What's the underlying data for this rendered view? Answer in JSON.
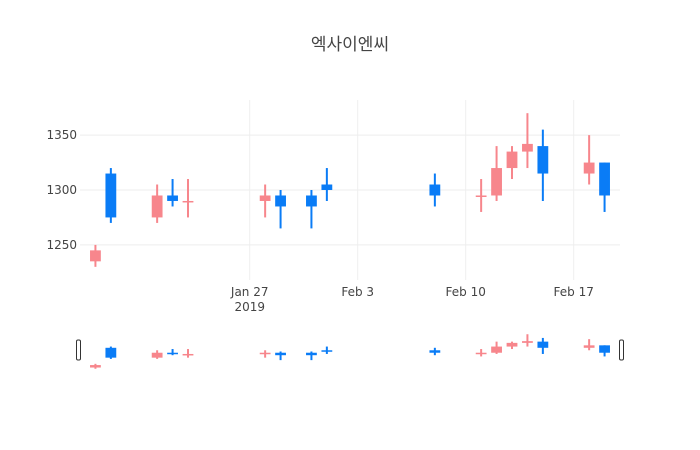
{
  "chart_data": {
    "type": "candlestick",
    "title": "엑사이엔씨",
    "xlabel": "",
    "ylabel": "",
    "up_color": "#f7868c",
    "down_color": "#0a7cf6",
    "y_ticks": [
      1250,
      1300,
      1350
    ],
    "ylim": [
      1218,
      1382
    ],
    "x_range": [
      "2019-01-16",
      "2019-02-20"
    ],
    "x_ticks": [
      {
        "date": "2019-01-27",
        "label": "Jan 27",
        "sublabel": "2019"
      },
      {
        "date": "2019-02-03",
        "label": "Feb 3",
        "sublabel": ""
      },
      {
        "date": "2019-02-10",
        "label": "Feb 10",
        "sublabel": ""
      },
      {
        "date": "2019-02-17",
        "label": "Feb 17",
        "sublabel": ""
      }
    ],
    "grid": true,
    "rangeslider": true,
    "candles": [
      {
        "date": "2019-01-17",
        "open": 1235,
        "high": 1250,
        "low": 1230,
        "close": 1245
      },
      {
        "date": "2019-01-18",
        "open": 1315,
        "high": 1320,
        "low": 1270,
        "close": 1275
      },
      {
        "date": "2019-01-21",
        "open": 1275,
        "high": 1305,
        "low": 1270,
        "close": 1295
      },
      {
        "date": "2019-01-22",
        "open": 1295,
        "high": 1310,
        "low": 1285,
        "close": 1290
      },
      {
        "date": "2019-01-23",
        "open": 1290,
        "high": 1310,
        "low": 1275,
        "close": 1290
      },
      {
        "date": "2019-01-28",
        "open": 1290,
        "high": 1305,
        "low": 1275,
        "close": 1295
      },
      {
        "date": "2019-01-29",
        "open": 1295,
        "high": 1300,
        "low": 1265,
        "close": 1285
      },
      {
        "date": "2019-01-31",
        "open": 1295,
        "high": 1300,
        "low": 1265,
        "close": 1285
      },
      {
        "date": "2019-02-01",
        "open": 1305,
        "high": 1320,
        "low": 1290,
        "close": 1300
      },
      {
        "date": "2019-02-08",
        "open": 1305,
        "high": 1315,
        "low": 1285,
        "close": 1295
      },
      {
        "date": "2019-02-11",
        "open": 1295,
        "high": 1310,
        "low": 1280,
        "close": 1295
      },
      {
        "date": "2019-02-12",
        "open": 1295,
        "high": 1340,
        "low": 1290,
        "close": 1320
      },
      {
        "date": "2019-02-13",
        "open": 1320,
        "high": 1340,
        "low": 1310,
        "close": 1335
      },
      {
        "date": "2019-02-14",
        "open": 1335,
        "high": 1370,
        "low": 1320,
        "close": 1342
      },
      {
        "date": "2019-02-15",
        "open": 1340,
        "high": 1355,
        "low": 1290,
        "close": 1315
      },
      {
        "date": "2019-02-18",
        "open": 1315,
        "high": 1350,
        "low": 1305,
        "close": 1325
      },
      {
        "date": "2019-02-19",
        "open": 1325,
        "high": 1325,
        "low": 1280,
        "close": 1295
      }
    ]
  }
}
